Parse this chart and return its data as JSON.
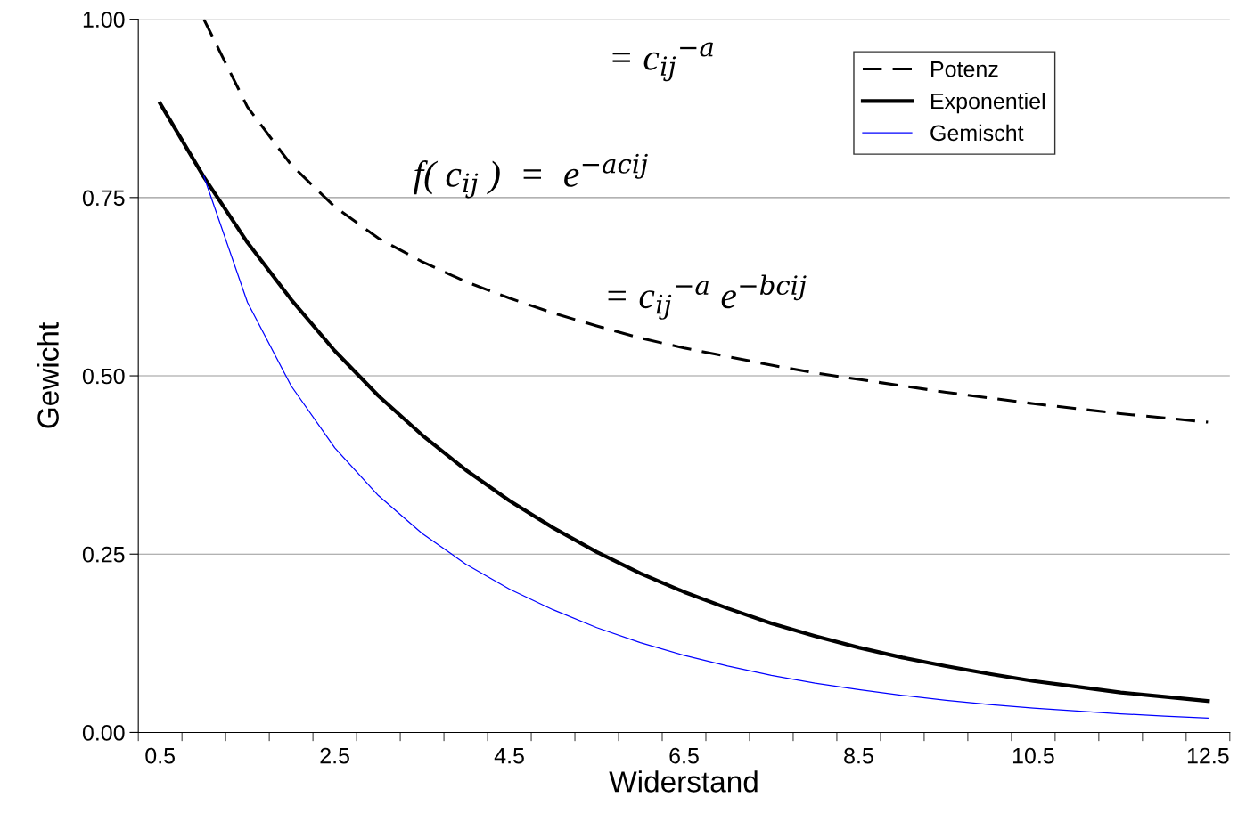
{
  "chart_data": {
    "type": "line",
    "xlabel": "Widerstand",
    "ylabel": "Gewicht",
    "categories": [
      "0.5",
      null,
      null,
      null,
      "2.5",
      null,
      null,
      null,
      "4.5",
      null,
      null,
      null,
      "6.5",
      null,
      null,
      null,
      "8.5",
      null,
      null,
      null,
      "10.5",
      null,
      null,
      null,
      "12.5"
    ],
    "series": [
      {
        "name": "Potenz",
        "color": "#000000",
        "line_style": "dashed",
        "values": [
          null,
          1.0,
          0.877,
          0.796,
          0.737,
          0.693,
          0.66,
          0.632,
          0.609,
          0.588,
          0.57,
          0.553,
          0.539,
          0.527,
          0.515,
          0.504,
          0.495,
          0.486,
          0.477,
          0.469,
          0.461,
          0.454,
          0.447,
          0.441,
          0.435
        ]
      },
      {
        "name": "Exponentiel",
        "color": "#000000",
        "line_style": "solid",
        "values": [
          0.882,
          0.779,
          0.687,
          0.607,
          0.535,
          0.472,
          0.417,
          0.368,
          0.325,
          0.287,
          0.253,
          0.223,
          0.197,
          0.174,
          0.153,
          0.135,
          0.119,
          0.105,
          0.093,
          0.082,
          0.072,
          0.064,
          0.056,
          0.05,
          0.044
        ]
      },
      {
        "name": "Gemischt",
        "color": "#0000ff",
        "line_style": "solid",
        "values": [
          null,
          0.78,
          0.603,
          0.486,
          0.399,
          0.332,
          0.279,
          0.236,
          0.201,
          0.172,
          0.147,
          0.126,
          0.108,
          0.093,
          0.08,
          0.069,
          0.06,
          0.052,
          0.045,
          0.039,
          0.034,
          0.03,
          0.026,
          0.023,
          0.02
        ]
      }
    ],
    "ylim": [
      0,
      1
    ],
    "yticks": [
      {
        "value": 0,
        "label": "0.00"
      },
      {
        "value": 0.25,
        "label": "0.25"
      },
      {
        "value": 0.5,
        "label": "0.50"
      },
      {
        "value": 0.75,
        "label": "0.75"
      },
      {
        "value": 1,
        "label": "1.00"
      }
    ],
    "grid": "y",
    "legend": "top right",
    "annotations": [
      "= c$_{ij}$$^{−a}$",
      "f( c$_{ij}$ )  =  e$^{−acij}$",
      "= c$_{ij}$$^{−a}$ e$^{−bcij}$"
    ]
  }
}
